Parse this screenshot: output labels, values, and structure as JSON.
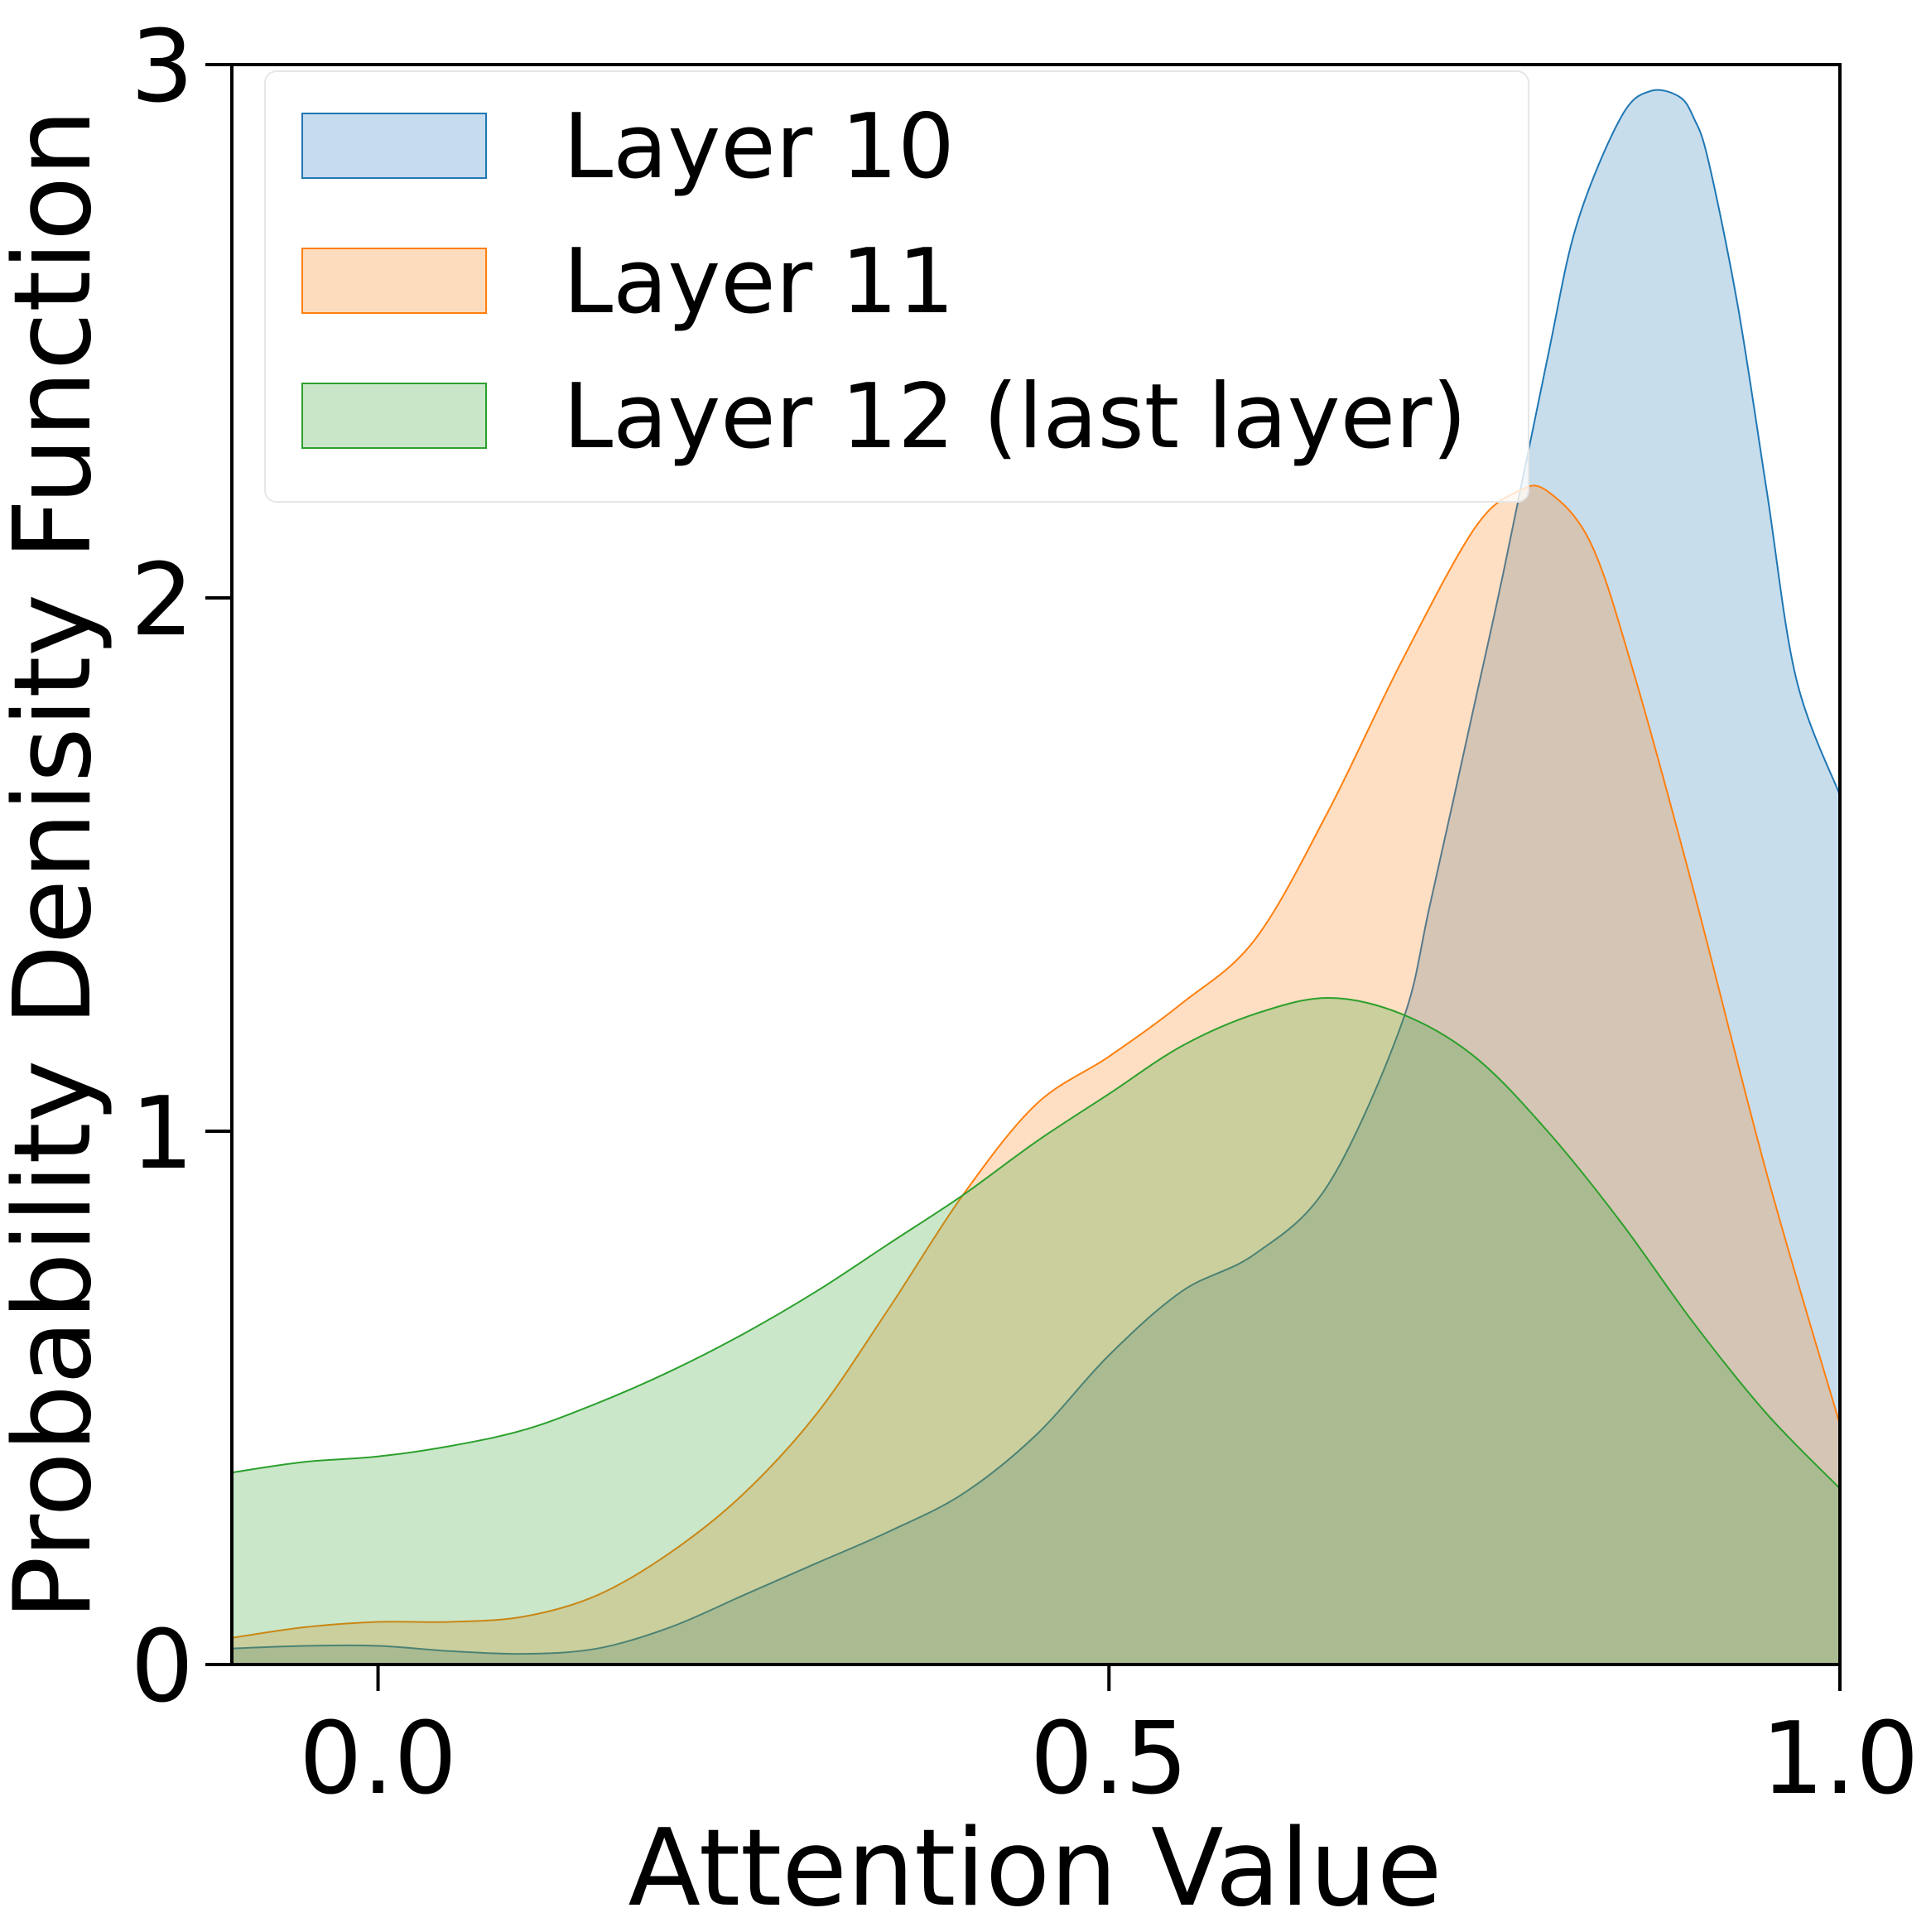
{
  "chart_data": {
    "type": "area",
    "title": "",
    "xlabel": "Attention Value",
    "ylabel": "Probability Denisity Function",
    "xlim": [
      -0.1,
      1.0
    ],
    "ylim": [
      0,
      3
    ],
    "x_ticks": [
      {
        "value": 0.0,
        "label": "0.0"
      },
      {
        "value": 0.5,
        "label": "0.5"
      },
      {
        "value": 1.0,
        "label": "1.0"
      }
    ],
    "y_ticks": [
      {
        "value": 0,
        "label": "0"
      },
      {
        "value": 1,
        "label": "1"
      },
      {
        "value": 2,
        "label": "2"
      },
      {
        "value": 3,
        "label": "3"
      }
    ],
    "grid": false,
    "legend_position": "top-left",
    "series": [
      {
        "name": "Layer 10",
        "fill": "#c6dbed",
        "stroke": "#1f77b4",
        "x": [
          -0.1,
          -0.05,
          0.0,
          0.05,
          0.1,
          0.15,
          0.2,
          0.25,
          0.3,
          0.35,
          0.4,
          0.45,
          0.5,
          0.55,
          0.6,
          0.65,
          0.7,
          0.72,
          0.75,
          0.77,
          0.8,
          0.82,
          0.85,
          0.87,
          0.89,
          0.9,
          0.91,
          0.93,
          0.95,
          0.97,
          1.0
        ],
        "y": [
          0.03,
          0.035,
          0.035,
          0.025,
          0.02,
          0.03,
          0.07,
          0.13,
          0.19,
          0.25,
          0.32,
          0.43,
          0.58,
          0.7,
          0.77,
          0.9,
          1.2,
          1.43,
          1.8,
          2.05,
          2.45,
          2.7,
          2.9,
          2.95,
          2.94,
          2.9,
          2.82,
          2.55,
          2.2,
          1.85,
          1.63
        ]
      },
      {
        "name": "Layer 11",
        "fill": "#fddcbd",
        "stroke": "#ff7f0e",
        "x": [
          -0.1,
          -0.05,
          0.0,
          0.05,
          0.1,
          0.15,
          0.2,
          0.25,
          0.3,
          0.35,
          0.4,
          0.45,
          0.5,
          0.55,
          0.6,
          0.65,
          0.7,
          0.75,
          0.78,
          0.8,
          0.83,
          0.86,
          0.9,
          0.95,
          1.0
        ],
        "y": [
          0.05,
          0.07,
          0.08,
          0.08,
          0.09,
          0.13,
          0.21,
          0.32,
          0.47,
          0.67,
          0.88,
          1.05,
          1.14,
          1.24,
          1.36,
          1.6,
          1.88,
          2.13,
          2.2,
          2.2,
          2.1,
          1.85,
          1.45,
          0.92,
          0.45
        ]
      },
      {
        "name": "Layer 12 (last layer)",
        "fill": "#c9e6c9",
        "stroke": "#2ca02c",
        "x": [
          -0.1,
          -0.05,
          0.0,
          0.05,
          0.1,
          0.15,
          0.2,
          0.25,
          0.3,
          0.35,
          0.4,
          0.45,
          0.5,
          0.55,
          0.6,
          0.65,
          0.7,
          0.75,
          0.8,
          0.85,
          0.9,
          0.95,
          1.0
        ],
        "y": [
          0.36,
          0.38,
          0.39,
          0.41,
          0.44,
          0.49,
          0.55,
          0.62,
          0.7,
          0.79,
          0.88,
          0.98,
          1.07,
          1.16,
          1.22,
          1.25,
          1.22,
          1.14,
          1.0,
          0.83,
          0.64,
          0.47,
          0.33
        ]
      }
    ]
  }
}
